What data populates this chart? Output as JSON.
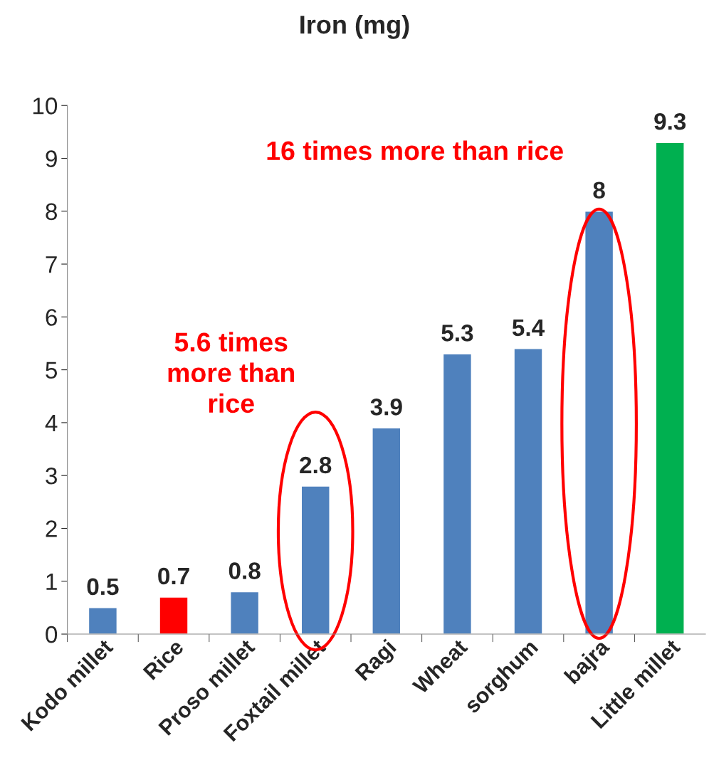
{
  "chart_data": {
    "type": "bar",
    "title": "Iron (mg)",
    "categories": [
      "Kodo millet",
      "Rice",
      "Proso millet",
      "Foxtail millet",
      "Ragi",
      "Wheat",
      "sorghum",
      "bajra",
      "Little millet"
    ],
    "values": [
      0.5,
      0.7,
      0.8,
      2.8,
      3.9,
      5.3,
      5.4,
      8,
      9.3
    ],
    "colors": [
      "#4f81bd",
      "#ff0000",
      "#4f81bd",
      "#4f81bd",
      "#4f81bd",
      "#4f81bd",
      "#4f81bd",
      "#4f81bd",
      "#00b050"
    ],
    "ylim": [
      0,
      10
    ],
    "yticks": [
      0,
      1,
      2,
      3,
      4,
      5,
      6,
      7,
      8,
      9,
      10
    ],
    "data_labels": true,
    "grid": false,
    "annotations": [
      {
        "text": "5.6 times more than rice",
        "x": "Foxtail millet",
        "y": 2.8
      },
      {
        "text": "16 times more than rice",
        "x": "bajra",
        "y": 8
      }
    ]
  }
}
